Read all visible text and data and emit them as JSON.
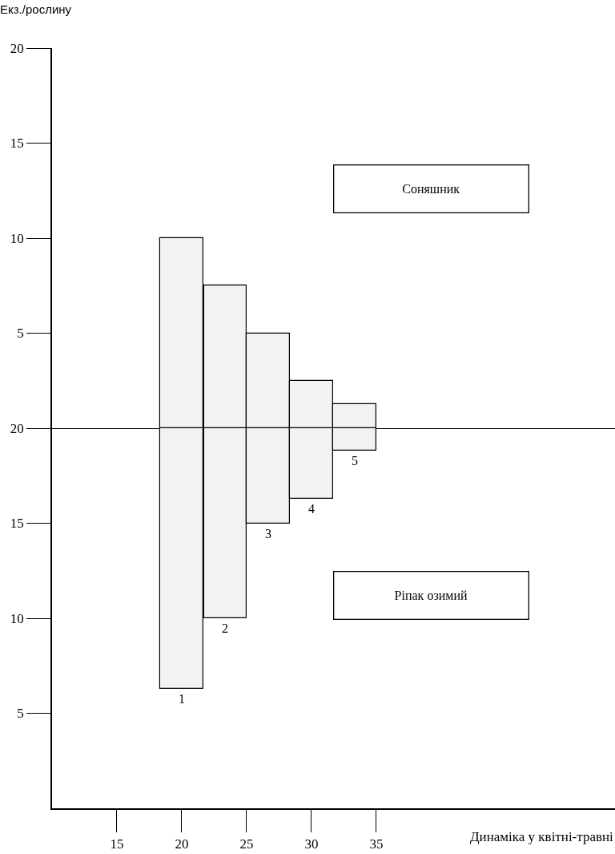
{
  "chart_data": [
    {
      "type": "bar",
      "ylabel": "Екз./рослину",
      "x": [
        20,
        23.35,
        26.65,
        30,
        33.35
      ],
      "values": [
        10,
        7.5,
        5,
        2.5,
        1.25
      ],
      "color": "#f2f2f2",
      "xlim": [
        10,
        53.4
      ],
      "ylim": [
        0,
        20
      ],
      "yticks": [
        5,
        10,
        15,
        20
      ],
      "tick_labels": "y",
      "annotations": [
        "Соняшник"
      ]
    },
    {
      "type": "bar",
      "xlabel": "Динаміка у квітні-травні",
      "x": [
        20,
        23.35,
        26.65,
        30,
        33.35
      ],
      "base": [
        20,
        20,
        20,
        20,
        20
      ],
      "values": [
        -13.7,
        -10,
        -5,
        -3.7,
        -1.2
      ],
      "color": "#f2f2f2",
      "xlim": [
        10,
        53.4
      ],
      "xticks": [
        15,
        20,
        25,
        30,
        35
      ],
      "ylim": [
        0,
        20
      ],
      "yticks": [
        5,
        10,
        15,
        20
      ],
      "annotations": [
        {
          "text": "1",
          "x": 20,
          "y": 6.3
        },
        {
          "text": "2",
          "x": 23.35,
          "y": 10
        },
        {
          "text": "3",
          "x": 26.65,
          "y": 15
        },
        {
          "text": "4",
          "x": 30,
          "y": 16.3
        },
        {
          "text": "5",
          "x": 33.35,
          "y": 18.8
        },
        "Ріпак озимий"
      ]
    }
  ]
}
